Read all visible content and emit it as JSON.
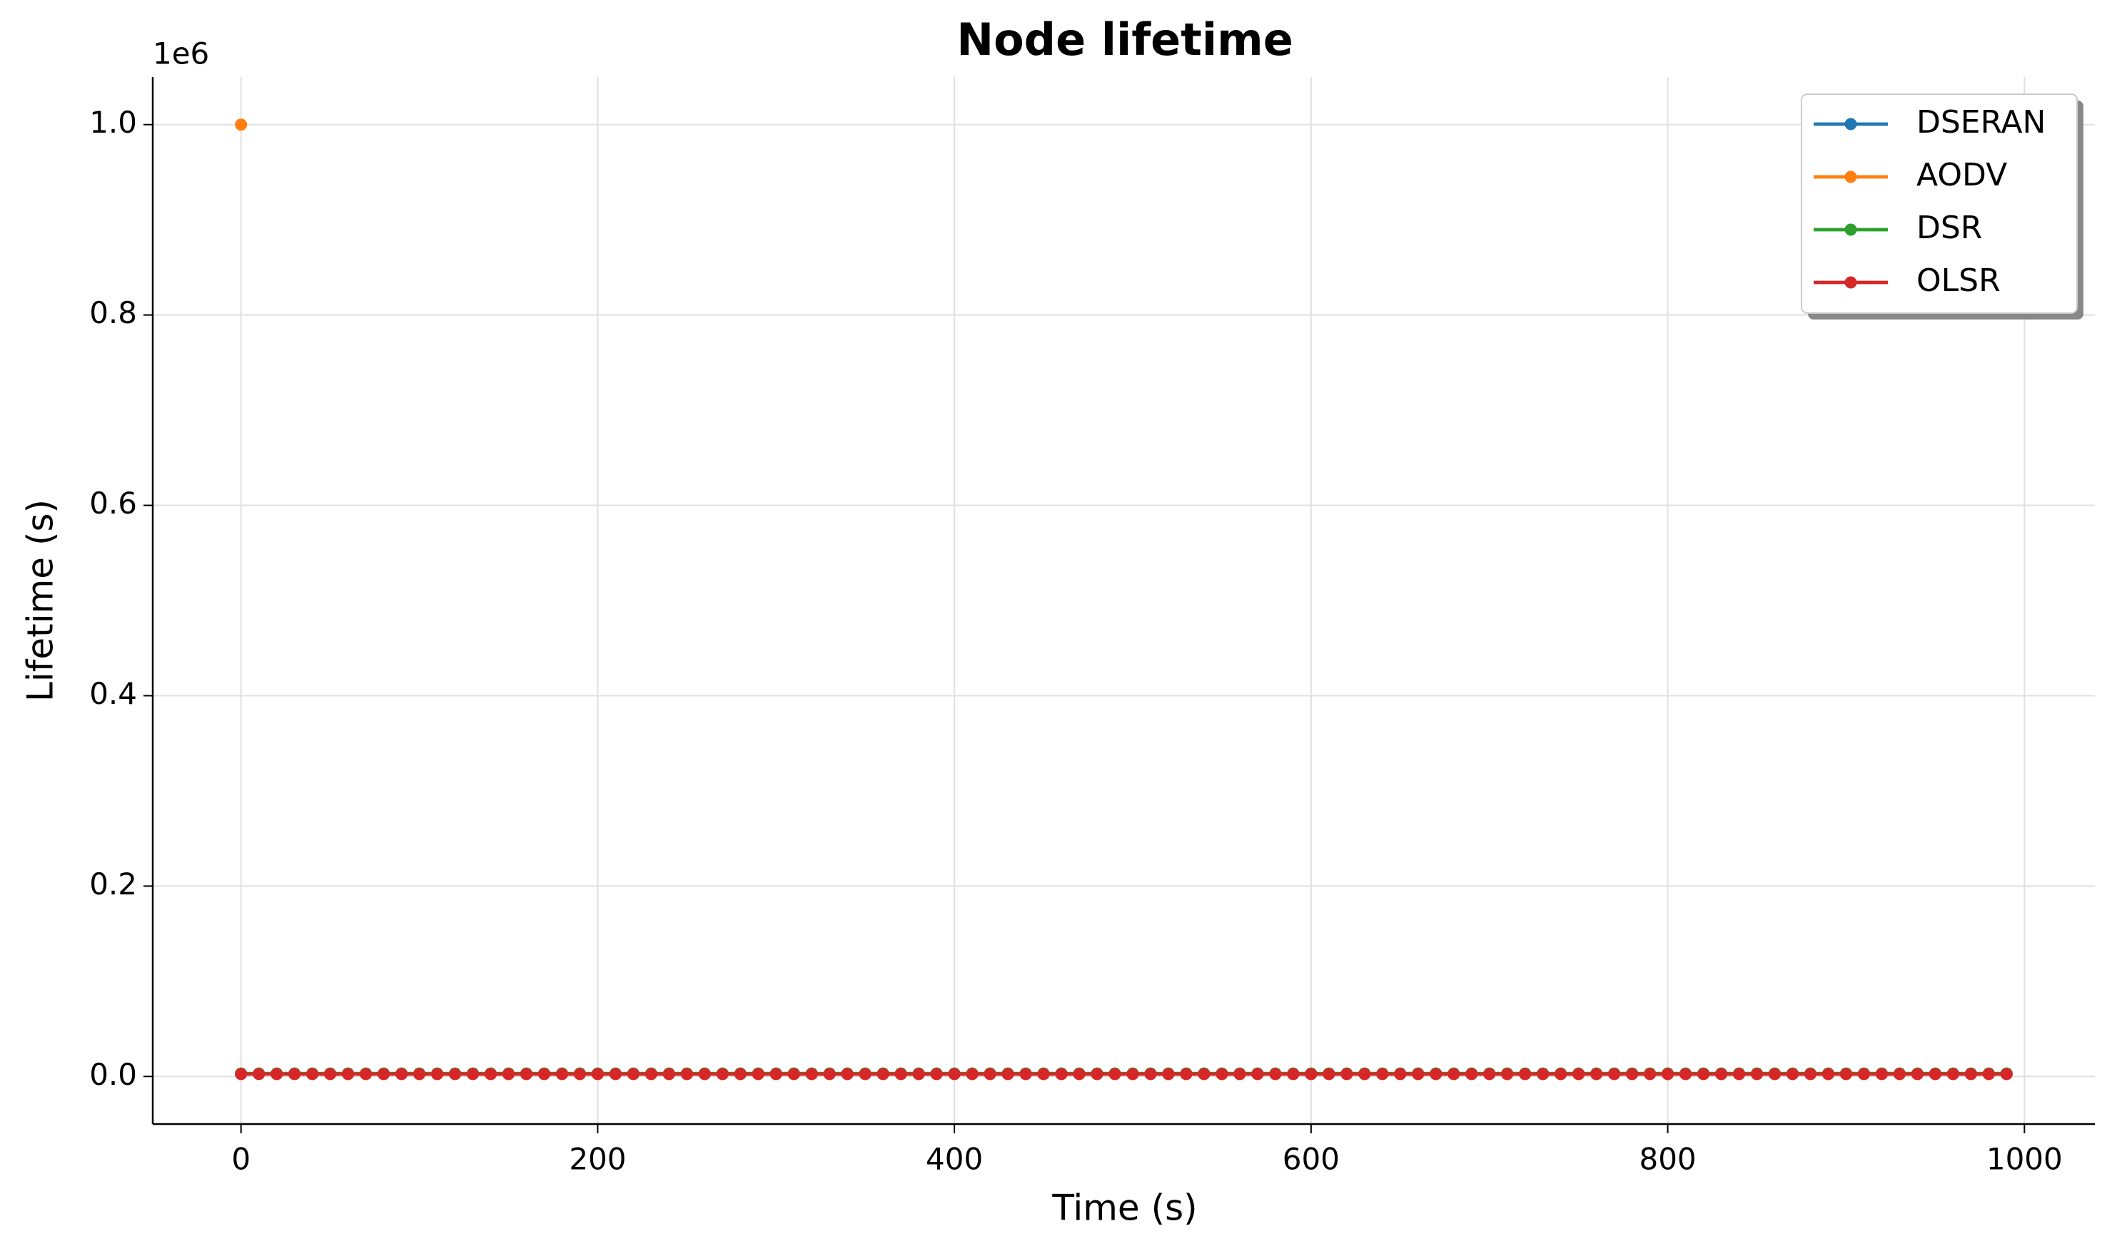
{
  "chart_data": {
    "type": "line",
    "title": "Node lifetime",
    "x_label": "Time (s)",
    "y_label": "Lifetime (s)",
    "y_offset_label": "1e6",
    "x": [
      0,
      10,
      20,
      30,
      40,
      50,
      60,
      70,
      80,
      90,
      100,
      110,
      120,
      130,
      140,
      150,
      160,
      170,
      180,
      190,
      200,
      210,
      220,
      230,
      240,
      250,
      260,
      270,
      280,
      290,
      300,
      310,
      320,
      330,
      340,
      350,
      360,
      370,
      380,
      390,
      400,
      410,
      420,
      430,
      440,
      450,
      460,
      470,
      480,
      490,
      500,
      510,
      520,
      530,
      540,
      550,
      560,
      570,
      580,
      590,
      600,
      610,
      620,
      630,
      640,
      650,
      660,
      670,
      680,
      690,
      700,
      710,
      720,
      730,
      740,
      750,
      760,
      770,
      780,
      790,
      800,
      810,
      820,
      830,
      840,
      850,
      860,
      870,
      880,
      890,
      900,
      910,
      920,
      930,
      940,
      950,
      960,
      970,
      980,
      990
    ],
    "series": [
      {
        "name": "DSERAN",
        "color": "#1f77b4",
        "values": [
          3000,
          3000,
          3000,
          3000,
          3000,
          3000,
          3000,
          3000,
          3000,
          3000,
          3000,
          3000,
          3000,
          3000,
          3000,
          3000,
          3000,
          3000,
          3000,
          3000,
          3000,
          3000,
          3000,
          3000,
          3000,
          3000,
          3000,
          3000,
          3000,
          3000,
          3000,
          3000,
          3000,
          3000,
          3000,
          3000,
          3000,
          3000,
          3000,
          3000,
          3000,
          3000,
          3000,
          3000,
          3000,
          3000,
          3000,
          3000,
          3000,
          3000,
          3000,
          3000,
          3000,
          3000,
          3000,
          3000,
          3000,
          3000,
          3000,
          3000,
          3000,
          3000,
          3000,
          3000,
          3000,
          3000,
          3000,
          3000,
          3000,
          3000,
          3000,
          3000,
          3000,
          3000,
          3000,
          3000,
          3000,
          3000,
          3000,
          3000,
          3000,
          3000,
          3000,
          3000,
          3000,
          3000,
          3000,
          3000,
          3000,
          3000,
          3000,
          3000,
          3000,
          3000,
          3000,
          3000,
          3000,
          3000,
          3000,
          3000
        ]
      },
      {
        "name": "AODV",
        "color": "#ff7f0e",
        "values": [
          1000000,
          null,
          2500,
          2500,
          2500,
          2500,
          2500,
          2500,
          2500,
          2500,
          2500,
          2500,
          2500,
          2500,
          2500,
          2500,
          2500,
          2500,
          2500,
          2500,
          2500,
          2500,
          2500,
          2500,
          2500,
          2500,
          2500,
          2500,
          2500,
          2500,
          2500,
          2500,
          2500,
          2500,
          2500,
          2500,
          2500,
          2500,
          2500,
          2500,
          2500,
          2500,
          2500,
          2500,
          2500,
          2500,
          2500,
          2500,
          2500,
          2500,
          2500,
          2500,
          2500,
          2500,
          2500,
          2500,
          2500,
          2500,
          2500,
          2500,
          2500,
          2500,
          2500,
          2500,
          2500,
          2500,
          2500,
          2500,
          2500,
          2500,
          2500,
          2500,
          2500,
          2500,
          2500,
          2500,
          2500,
          2500,
          2500,
          2500,
          2500,
          2500,
          2500,
          2500,
          2500,
          2500,
          2500,
          2500,
          2500,
          2500,
          2500,
          2500,
          2500,
          2500,
          2500,
          2500,
          2500,
          2500,
          2500,
          2500
        ]
      },
      {
        "name": "DSR",
        "color": "#2ca02c",
        "values": [
          3000,
          3000,
          3000,
          3000,
          3000,
          3000,
          3000,
          3000,
          3000,
          3000,
          3000,
          3000,
          3000,
          3000,
          3000,
          3000,
          3000,
          3000,
          3000,
          3000,
          3000,
          3000,
          3000,
          3000,
          3000,
          3000,
          3000,
          3000,
          3000,
          3000,
          3000,
          3000,
          3000,
          3000,
          3000,
          3000,
          3000,
          3000,
          3000,
          3000,
          3000,
          3000,
          3000,
          3000,
          3000,
          3000,
          3000,
          3000,
          3000,
          3000,
          3000,
          3000,
          3000,
          3000,
          3000,
          3000,
          3000,
          3000,
          3000,
          3000,
          3000,
          3000,
          3000,
          3000,
          3000,
          3000,
          3000,
          3000,
          3000,
          3000,
          3000,
          3000,
          3000,
          3000,
          3000,
          3000,
          3000,
          3000,
          3000,
          3000,
          3000,
          3000,
          3000,
          3000,
          3000,
          3000,
          3000,
          3000,
          3000,
          3000,
          3000,
          3000,
          3000,
          3000,
          3000,
          3000,
          3000,
          3000,
          3000,
          3000
        ]
      },
      {
        "name": "OLSR",
        "color": "#d62728",
        "values": [
          2500,
          2500,
          2500,
          2500,
          2500,
          2500,
          2500,
          2500,
          2500,
          2500,
          2500,
          2500,
          2500,
          2500,
          2500,
          2500,
          2500,
          2500,
          2500,
          2500,
          2500,
          2500,
          2500,
          2500,
          2500,
          2500,
          2500,
          2500,
          2500,
          2500,
          2500,
          2500,
          2500,
          2500,
          2500,
          2500,
          2500,
          2500,
          2500,
          2500,
          2500,
          2500,
          2500,
          2500,
          2500,
          2500,
          2500,
          2500,
          2500,
          2500,
          2500,
          2500,
          2500,
          2500,
          2500,
          2500,
          2500,
          2500,
          2500,
          2500,
          2500,
          2500,
          2500,
          2500,
          2500,
          2500,
          2500,
          2500,
          2500,
          2500,
          2500,
          2500,
          2500,
          2500,
          2500,
          2500,
          2500,
          2500,
          2500,
          2500,
          2500,
          2500,
          2500,
          2500,
          2500,
          2500,
          2500,
          2500,
          2500,
          2500,
          2500,
          2500,
          2500,
          2500,
          2500,
          2500,
          2500,
          2500,
          2500,
          2500
        ]
      }
    ],
    "xlim": [
      -49.5,
      1039.5
    ],
    "xticks": [
      0,
      200,
      400,
      600,
      800,
      1000
    ],
    "ylim": [
      -50000,
      1050000
    ],
    "yticks": [
      {
        "value": 0,
        "label": "0.0"
      },
      {
        "value": 200000,
        "label": "0.2"
      },
      {
        "value": 400000,
        "label": "0.4"
      },
      {
        "value": 600000,
        "label": "0.6"
      },
      {
        "value": 800000,
        "label": "0.8"
      },
      {
        "value": 1000000,
        "label": "1.0"
      }
    ],
    "grid": true,
    "legend": "upper right"
  }
}
